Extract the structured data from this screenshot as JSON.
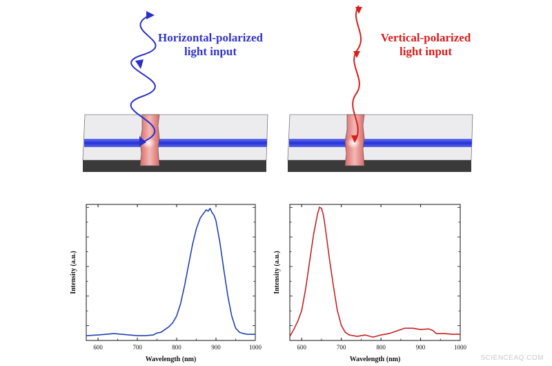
{
  "top_panels": [
    {
      "label_line1": "Horizontal-polarized",
      "label_line2": "light input",
      "color": "#3433c8"
    },
    {
      "label_line1": "Vertical-polarized",
      "label_line2": "light input",
      "color": "#d91c1c"
    }
  ],
  "colors": {
    "waveguide": "#2b33d6",
    "nanowire": "#e07a78",
    "slab_top": "#ececee",
    "slab_side": "#3a3a3a"
  },
  "chart_data": [
    {
      "type": "line",
      "xlabel": "Wavelength (nm)",
      "ylabel": "Intensity (a.u.)",
      "xlim": [
        570,
        1000
      ],
      "ylim": [
        0,
        1.0
      ],
      "xticks": [
        600,
        700,
        800,
        900,
        1000
      ],
      "color": "#2040b0",
      "series": [
        {
          "x": [
            570,
            600,
            620,
            640,
            660,
            680,
            700,
            720,
            740,
            750,
            760,
            770,
            780,
            790,
            800,
            810,
            820,
            830,
            840,
            850,
            860,
            870,
            875,
            880,
            885,
            890,
            895,
            900,
            910,
            920,
            930,
            940,
            950,
            960,
            970,
            980,
            1000
          ],
          "y": [
            0.035,
            0.04,
            0.045,
            0.05,
            0.045,
            0.04,
            0.035,
            0.035,
            0.04,
            0.055,
            0.06,
            0.08,
            0.1,
            0.13,
            0.18,
            0.27,
            0.4,
            0.55,
            0.7,
            0.82,
            0.9,
            0.94,
            0.96,
            0.95,
            0.97,
            0.94,
            0.92,
            0.88,
            0.72,
            0.52,
            0.33,
            0.18,
            0.09,
            0.06,
            0.05,
            0.045,
            0.045
          ]
        }
      ]
    },
    {
      "type": "line",
      "xlabel": "Wavelength (nm)",
      "ylabel": "Intensity (a.u.)",
      "xlim": [
        570,
        1000
      ],
      "ylim": [
        0,
        1.0
      ],
      "xticks": [
        600,
        700,
        800,
        900,
        1000
      ],
      "color": "#c42020",
      "series": [
        {
          "x": [
            570,
            580,
            590,
            600,
            610,
            620,
            630,
            640,
            645,
            650,
            655,
            660,
            670,
            680,
            690,
            700,
            710,
            720,
            740,
            760,
            780,
            800,
            820,
            840,
            860,
            880,
            900,
            920,
            930,
            940,
            960,
            980,
            1000
          ],
          "y": [
            0.03,
            0.08,
            0.14,
            0.22,
            0.38,
            0.58,
            0.78,
            0.93,
            0.98,
            0.97,
            0.92,
            0.82,
            0.6,
            0.4,
            0.22,
            0.11,
            0.06,
            0.04,
            0.03,
            0.04,
            0.025,
            0.04,
            0.05,
            0.07,
            0.09,
            0.09,
            0.08,
            0.085,
            0.075,
            0.05,
            0.05,
            0.045,
            0.045
          ]
        }
      ]
    }
  ],
  "credit": "SCIENCEAQ.COM"
}
